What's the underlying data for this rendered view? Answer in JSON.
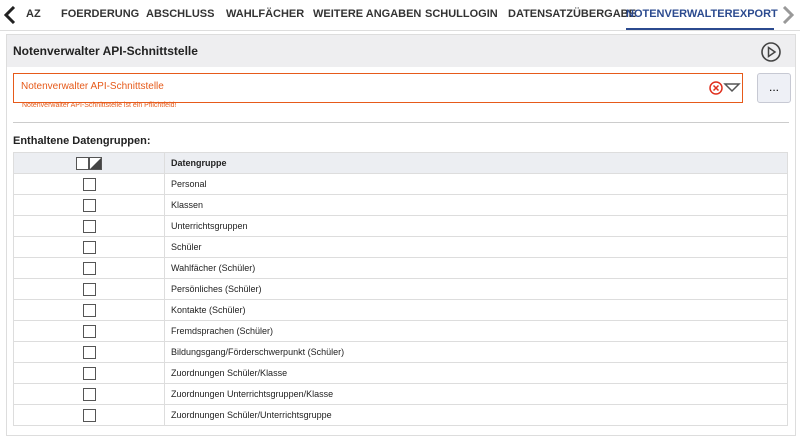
{
  "tabs": [
    "AZ",
    "FOERDERUNG",
    "ABSCHLUSS",
    "WAHLFÄCHER",
    "WEITERE ANGABEN",
    "SCHULLOGIN",
    "DATENSATZÜBERGABE",
    "NOTENVERWALTEREXPORT"
  ],
  "active_tab": 7,
  "panel": {
    "title": "Notenverwalter API-Schnittstelle",
    "select": {
      "value": "Notenverwalter API-Schnittstelle",
      "button": "...",
      "error": "Notenverwalter API-Schnittstelle ist ein Pflichtfeld!"
    },
    "section_label": "Enthaltene Datengruppen:",
    "table": {
      "header": "Datengruppe",
      "rows": [
        "Personal",
        "Klassen",
        "Unterrichtsgruppen",
        "Schüler",
        "Wahlfächer (Schüler)",
        "Persönliches (Schüler)",
        "Kontakte (Schüler)",
        "Fremdsprachen (Schüler)",
        "Bildungsgang/Förderschwerpunkt (Schüler)",
        "Zuordnungen Schüler/Klasse",
        "Zuordnungen Unterrichtsgruppen/Klasse",
        "Zuordnungen Schüler/Unterrichtsgruppe"
      ]
    }
  }
}
